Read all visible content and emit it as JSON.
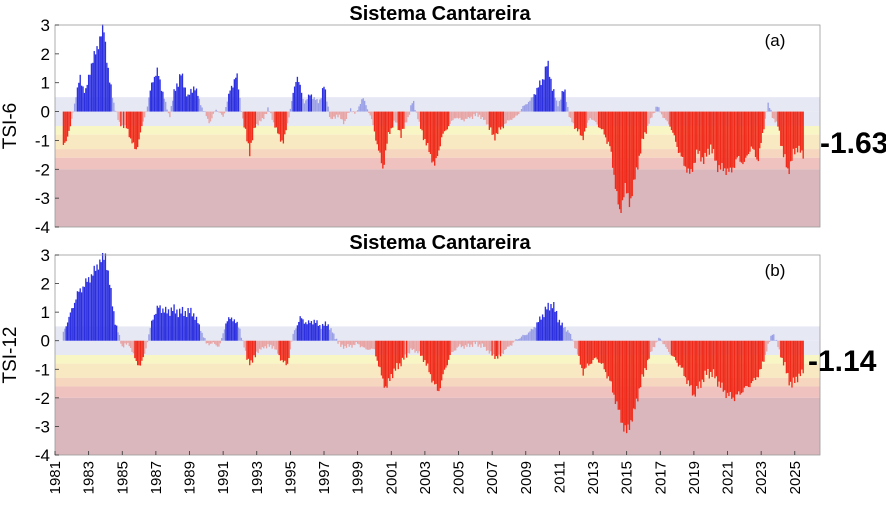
{
  "chart_data": [
    {
      "id": "tsi6",
      "type": "bar",
      "title": "Sistema Cantareira",
      "ylabel": "TSI-6",
      "panel_label": "(a)",
      "final_value_label": "-1.63",
      "final_value": -1.63,
      "ylim": [
        -4,
        3
      ],
      "yticks": [
        "-4",
        "-3",
        "-2",
        "-1",
        "0",
        "1",
        "2",
        "3"
      ],
      "xlim": [
        1981,
        2026.5
      ],
      "category_bands": [
        {
          "from": 0,
          "to": 0.5,
          "color": "#e6e8f4"
        },
        {
          "from": -0.5,
          "to": 0,
          "color": "#e6e8f4"
        },
        {
          "from": -0.8,
          "to": -0.5,
          "color": "#f9f6c6"
        },
        {
          "from": -1.3,
          "to": -0.8,
          "color": "#f9e9c3"
        },
        {
          "from": -1.6,
          "to": -1.3,
          "color": "#f6d6be"
        },
        {
          "from": -2.0,
          "to": -1.6,
          "color": "#f0c2bf"
        },
        {
          "from": -4.0,
          "to": -2.0,
          "color": "#d9b7bc"
        }
      ],
      "anchors": [
        [
          1981.5,
          -1.2
        ],
        [
          1981.9,
          -0.6
        ],
        [
          1982.2,
          0.4
        ],
        [
          1982.5,
          1.2
        ],
        [
          1982.8,
          0.6
        ],
        [
          1983.1,
          1.5
        ],
        [
          1983.5,
          2.2
        ],
        [
          1983.9,
          2.95
        ],
        [
          1984.2,
          1.2
        ],
        [
          1984.5,
          0.3
        ],
        [
          1984.8,
          -0.4
        ],
        [
          1985.3,
          -0.6
        ],
        [
          1985.8,
          -1.4
        ],
        [
          1986.1,
          -0.7
        ],
        [
          1986.5,
          0.2
        ],
        [
          1986.8,
          1.1
        ],
        [
          1987.1,
          1.4
        ],
        [
          1987.4,
          0.7
        ],
        [
          1987.8,
          -0.2
        ],
        [
          1988.1,
          0.7
        ],
        [
          1988.5,
          1.3
        ],
        [
          1988.9,
          0.5
        ],
        [
          1989.3,
          0.9
        ],
        [
          1989.7,
          0.2
        ],
        [
          1990.2,
          -0.4
        ],
        [
          1990.6,
          0.1
        ],
        [
          1991.0,
          -0.2
        ],
        [
          1991.4,
          0.7
        ],
        [
          1991.8,
          1.3
        ],
        [
          1992.2,
          -0.4
        ],
        [
          1992.6,
          -1.4
        ],
        [
          1992.9,
          -0.5
        ],
        [
          1993.3,
          -0.3
        ],
        [
          1993.7,
          0.1
        ],
        [
          1994.2,
          -0.7
        ],
        [
          1994.6,
          -1.1
        ],
        [
          1995.1,
          0.4
        ],
        [
          1995.4,
          1.3
        ],
        [
          1995.8,
          0.3
        ],
        [
          1996.2,
          0.6
        ],
        [
          1996.7,
          0.3
        ],
        [
          1997.0,
          0.9
        ],
        [
          1997.4,
          -0.3
        ],
        [
          1997.8,
          -0.1
        ],
        [
          1998.2,
          -0.4
        ],
        [
          1998.6,
          0.1
        ],
        [
          1998.9,
          -0.1
        ],
        [
          1999.3,
          0.5
        ],
        [
          1999.8,
          -0.2
        ],
        [
          2000.2,
          -1.2
        ],
        [
          2000.5,
          -2.0
        ],
        [
          2000.8,
          -0.9
        ],
        [
          2001.2,
          -0.3
        ],
        [
          2001.6,
          -0.8
        ],
        [
          2002.0,
          -0.2
        ],
        [
          2002.3,
          0.4
        ],
        [
          2002.7,
          -0.5
        ],
        [
          2003.2,
          -1.3
        ],
        [
          2003.6,
          -1.9
        ],
        [
          2004.0,
          -0.9
        ],
        [
          2004.4,
          -0.5
        ],
        [
          2004.8,
          -0.2
        ],
        [
          2005.3,
          -0.3
        ],
        [
          2005.7,
          -0.2
        ],
        [
          2006.2,
          -0.1
        ],
        [
          2006.7,
          -0.4
        ],
        [
          2007.1,
          -0.9
        ],
        [
          2007.5,
          -0.6
        ],
        [
          2008.0,
          -0.3
        ],
        [
          2008.4,
          -0.2
        ],
        [
          2008.9,
          0.2
        ],
        [
          2009.3,
          0.4
        ],
        [
          2009.7,
          0.8
        ],
        [
          2010.0,
          1.1
        ],
        [
          2010.3,
          1.7
        ],
        [
          2010.6,
          0.8
        ],
        [
          2010.9,
          0.2
        ],
        [
          2011.3,
          0.8
        ],
        [
          2011.6,
          -0.2
        ],
        [
          2012.0,
          -0.6
        ],
        [
          2012.4,
          -0.9
        ],
        [
          2012.8,
          -0.2
        ],
        [
          2013.2,
          -0.4
        ],
        [
          2013.6,
          -0.7
        ],
        [
          2014.0,
          -1.2
        ],
        [
          2014.3,
          -2.4
        ],
        [
          2014.6,
          -3.6
        ],
        [
          2014.9,
          -2.6
        ],
        [
          2015.2,
          -3.2
        ],
        [
          2015.6,
          -2.0
        ],
        [
          2016.0,
          -0.9
        ],
        [
          2016.4,
          -0.3
        ],
        [
          2016.8,
          0.2
        ],
        [
          2017.2,
          -0.2
        ],
        [
          2017.6,
          -0.5
        ],
        [
          2018.0,
          -1.2
        ],
        [
          2018.4,
          -1.8
        ],
        [
          2018.8,
          -2.2
        ],
        [
          2019.2,
          -1.4
        ],
        [
          2019.6,
          -1.7
        ],
        [
          2020.0,
          -1.2
        ],
        [
          2020.4,
          -1.9
        ],
        [
          2020.8,
          -2.0
        ],
        [
          2021.2,
          -2.1
        ],
        [
          2021.6,
          -1.6
        ],
        [
          2022.0,
          -1.8
        ],
        [
          2022.4,
          -1.2
        ],
        [
          2022.8,
          -1.7
        ],
        [
          2023.1,
          -0.8
        ],
        [
          2023.4,
          0.3
        ],
        [
          2023.7,
          -0.2
        ],
        [
          2024.0,
          -0.5
        ],
        [
          2024.3,
          -1.4
        ],
        [
          2024.6,
          -2.1
        ],
        [
          2024.9,
          -1.5
        ],
        [
          2025.2,
          -1.2
        ],
        [
          2025.5,
          -1.63
        ]
      ]
    },
    {
      "id": "tsi12",
      "type": "bar",
      "title": "Sistema Cantareira",
      "ylabel": "TSI-12",
      "panel_label": "(b)",
      "final_value_label": "-1.14",
      "final_value": -1.14,
      "ylim": [
        -4,
        3
      ],
      "yticks": [
        "-4",
        "-3",
        "-2",
        "-1",
        "0",
        "1",
        "2",
        "3"
      ],
      "xlim": [
        1981,
        2026.5
      ],
      "xticks": [
        "1981",
        "1983",
        "1985",
        "1987",
        "1989",
        "1991",
        "1993",
        "1995",
        "1997",
        "1999",
        "2001",
        "2003",
        "2005",
        "2007",
        "2009",
        "2011",
        "2013",
        "2015",
        "2017",
        "2019",
        "2021",
        "2023",
        "2025"
      ],
      "category_bands": [
        {
          "from": 0,
          "to": 0.5,
          "color": "#e6e8f4"
        },
        {
          "from": -0.5,
          "to": 0,
          "color": "#e6e8f4"
        },
        {
          "from": -0.8,
          "to": -0.5,
          "color": "#f9f6c6"
        },
        {
          "from": -1.3,
          "to": -0.8,
          "color": "#f9e9c3"
        },
        {
          "from": -1.6,
          "to": -1.3,
          "color": "#f6d6be"
        },
        {
          "from": -2.0,
          "to": -1.6,
          "color": "#f0c2bf"
        },
        {
          "from": -4.0,
          "to": -2.0,
          "color": "#d9b7bc"
        }
      ],
      "anchors": [
        [
          1981.5,
          0.3
        ],
        [
          1981.9,
          0.9
        ],
        [
          1982.3,
          1.6
        ],
        [
          1982.8,
          2.0
        ],
        [
          1983.2,
          2.3
        ],
        [
          1983.6,
          2.7
        ],
        [
          1984.0,
          3.0
        ],
        [
          1984.3,
          1.8
        ],
        [
          1984.6,
          0.6
        ],
        [
          1985.0,
          -0.2
        ],
        [
          1985.4,
          -0.1
        ],
        [
          1985.8,
          -0.7
        ],
        [
          1986.1,
          -0.9
        ],
        [
          1986.4,
          -0.3
        ],
        [
          1986.8,
          0.8
        ],
        [
          1987.2,
          1.2
        ],
        [
          1987.6,
          1.0
        ],
        [
          1988.0,
          1.1
        ],
        [
          1988.4,
          1.0
        ],
        [
          1988.8,
          1.0
        ],
        [
          1989.2,
          1.0
        ],
        [
          1989.6,
          0.5
        ],
        [
          1990.0,
          -0.1
        ],
        [
          1990.4,
          -0.1
        ],
        [
          1990.8,
          -0.2
        ],
        [
          1991.2,
          0.7
        ],
        [
          1991.6,
          0.8
        ],
        [
          1992.0,
          0.4
        ],
        [
          1992.4,
          -0.6
        ],
        [
          1992.7,
          -0.8
        ],
        [
          1993.0,
          -0.4
        ],
        [
          1993.5,
          -0.2
        ],
        [
          1994.0,
          -0.2
        ],
        [
          1994.4,
          -0.6
        ],
        [
          1994.8,
          -0.9
        ],
        [
          1995.2,
          0.3
        ],
        [
          1995.6,
          0.8
        ],
        [
          1996.0,
          0.6
        ],
        [
          1996.4,
          0.7
        ],
        [
          1996.8,
          0.5
        ],
        [
          1997.2,
          0.6
        ],
        [
          1997.6,
          0.2
        ],
        [
          1998.0,
          -0.2
        ],
        [
          1998.5,
          -0.2
        ],
        [
          1999.0,
          -0.1
        ],
        [
          1999.5,
          -0.3
        ],
        [
          2000.0,
          -0.3
        ],
        [
          2000.3,
          -1.0
        ],
        [
          2000.7,
          -1.7
        ],
        [
          2001.0,
          -1.2
        ],
        [
          2001.4,
          -0.9
        ],
        [
          2001.8,
          -0.6
        ],
        [
          2002.2,
          -0.3
        ],
        [
          2002.6,
          -0.4
        ],
        [
          2003.0,
          -0.7
        ],
        [
          2003.4,
          -1.3
        ],
        [
          2003.8,
          -1.8
        ],
        [
          2004.1,
          -1.2
        ],
        [
          2004.5,
          -0.5
        ],
        [
          2005.0,
          -0.2
        ],
        [
          2005.5,
          -0.2
        ],
        [
          2006.0,
          -0.1
        ],
        [
          2006.5,
          -0.2
        ],
        [
          2007.0,
          -0.5
        ],
        [
          2007.4,
          -0.6
        ],
        [
          2007.8,
          -0.3
        ],
        [
          2008.2,
          -0.1
        ],
        [
          2008.6,
          0.1
        ],
        [
          2009.0,
          0.2
        ],
        [
          2009.4,
          0.4
        ],
        [
          2009.8,
          0.7
        ],
        [
          2010.2,
          1.1
        ],
        [
          2010.6,
          1.3
        ],
        [
          2010.9,
          0.8
        ],
        [
          2011.2,
          0.5
        ],
        [
          2011.6,
          0.3
        ],
        [
          2012.0,
          -0.3
        ],
        [
          2012.4,
          -1.1
        ],
        [
          2012.8,
          -0.8
        ],
        [
          2013.2,
          -0.6
        ],
        [
          2013.6,
          -0.9
        ],
        [
          2014.0,
          -1.4
        ],
        [
          2014.4,
          -2.2
        ],
        [
          2014.8,
          -3.0
        ],
        [
          2015.0,
          -3.2
        ],
        [
          2015.4,
          -2.6
        ],
        [
          2015.8,
          -1.6
        ],
        [
          2016.2,
          -0.8
        ],
        [
          2016.6,
          -0.2
        ],
        [
          2017.0,
          0.1
        ],
        [
          2017.4,
          -0.3
        ],
        [
          2017.8,
          -0.6
        ],
        [
          2018.2,
          -0.9
        ],
        [
          2018.6,
          -1.4
        ],
        [
          2019.0,
          -1.9
        ],
        [
          2019.4,
          -1.5
        ],
        [
          2019.8,
          -1.1
        ],
        [
          2020.2,
          -1.2
        ],
        [
          2020.6,
          -1.6
        ],
        [
          2021.0,
          -1.9
        ],
        [
          2021.4,
          -2.0
        ],
        [
          2021.8,
          -1.8
        ],
        [
          2022.2,
          -1.6
        ],
        [
          2022.6,
          -1.4
        ],
        [
          2023.0,
          -1.0
        ],
        [
          2023.4,
          -0.2
        ],
        [
          2023.7,
          0.3
        ],
        [
          2024.0,
          -0.2
        ],
        [
          2024.4,
          -0.9
        ],
        [
          2024.8,
          -1.6
        ],
        [
          2025.1,
          -1.3
        ],
        [
          2025.5,
          -1.14
        ]
      ]
    }
  ]
}
